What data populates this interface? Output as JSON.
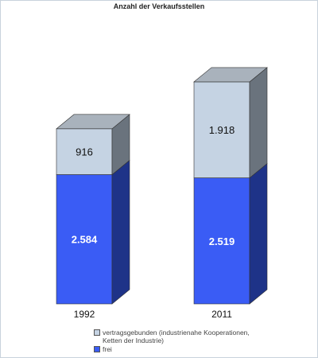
{
  "chart_data": {
    "type": "bar",
    "stacked": true,
    "style": "3d",
    "title": "Anzahl der Verkaufsstellen",
    "categories": [
      "1992",
      "2011"
    ],
    "series": [
      {
        "name": "frei",
        "values": [
          2584,
          2519
        ],
        "labels": [
          "2.584",
          "2.519"
        ],
        "color": "#3a5cf5",
        "side_color": "#1e3388",
        "top_color": "#5a78f7",
        "label_color": "#ffffff"
      },
      {
        "name": "vertragsgebunden (industrienahe Kooperationen, Ketten der Industrie)",
        "values": [
          916,
          1918
        ],
        "labels": [
          "916",
          "1.918"
        ],
        "color": "#c5d3e3",
        "side_color": "#6a737d",
        "top_color": "#a9b2bc",
        "label_color": "#111111"
      }
    ],
    "legend_order": [
      1,
      0
    ],
    "legend_position": "bottom",
    "grid": false
  }
}
